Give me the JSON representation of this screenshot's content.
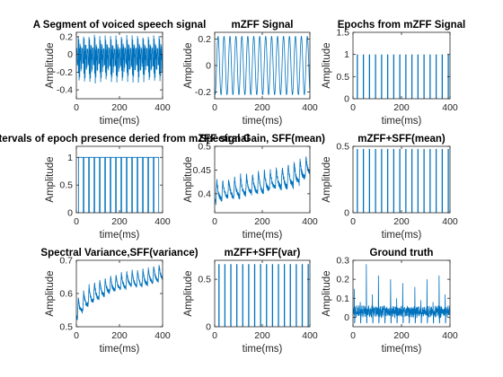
{
  "figure": {
    "line_color": "#0072BD",
    "axes_color": "#262626",
    "background": "#ffffff"
  },
  "chart_data": [
    {
      "id": "voiced-speech",
      "type": "line",
      "title": "A Segment of voiced speech signal",
      "xlabel": "time(ms)",
      "ylabel": "Amplitude",
      "xlim": [
        0,
        400
      ],
      "ylim": [
        -0.5,
        0.25
      ],
      "xticks": [
        0,
        200,
        400
      ],
      "yticks": [
        -0.4,
        -0.2,
        0,
        0.2
      ],
      "ytick_labels": [
        "-0.4",
        "-0.2",
        "0",
        "0.2"
      ],
      "series": [
        {
          "kind": "speech",
          "period_ms": 25,
          "offset_ms": 8,
          "min": -0.47,
          "max": 0.24,
          "x": [
            0,
            25,
            50,
            75,
            100,
            125,
            150,
            175,
            200,
            225,
            250,
            275,
            300,
            325,
            350,
            375,
            400
          ],
          "y_peak": [
            0.22,
            0.23,
            0.22,
            0.24,
            0.23,
            0.22,
            0.23,
            0.22,
            0.22,
            0.23,
            0.22,
            0.23,
            0.22,
            0.22,
            0.23,
            0.22,
            0.22
          ],
          "y_trough": [
            -0.44,
            -0.45,
            -0.44,
            -0.46,
            -0.45,
            -0.44,
            -0.45,
            -0.46,
            -0.44,
            -0.45,
            -0.44,
            -0.45,
            -0.44,
            -0.45,
            -0.46,
            -0.44,
            -0.44
          ]
        }
      ]
    },
    {
      "id": "mzff-signal",
      "type": "line",
      "title": "mZFF Signal",
      "xlabel": "time(ms)",
      "ylabel": "Amplitude",
      "xlim": [
        0,
        400
      ],
      "ylim": [
        -0.25,
        0.25
      ],
      "xticks": [
        0,
        200,
        400
      ],
      "yticks": [
        -0.2,
        0,
        0.2
      ],
      "ytick_labels": [
        "-0.2",
        "0",
        "0.2"
      ],
      "series": [
        {
          "kind": "sine",
          "period_ms": 25,
          "phase_ms": 8,
          "amplitude": 0.22
        }
      ]
    },
    {
      "id": "epochs-mzff",
      "type": "stem",
      "title": "Epochs from mZFF Signal",
      "xlabel": "time(ms)",
      "ylabel": "Amplitude",
      "xlim": [
        0,
        400
      ],
      "ylim": [
        0,
        1.5
      ],
      "xticks": [
        0,
        200,
        400
      ],
      "yticks": [
        0,
        0.5,
        1,
        1.5
      ],
      "ytick_labels": [
        "0",
        "0.5",
        "1",
        "1.5"
      ],
      "series": [
        {
          "kind": "impulses",
          "height": 1,
          "x": [
            18,
            43,
            68,
            93,
            118,
            143,
            168,
            193,
            218,
            243,
            268,
            293,
            318,
            343,
            368,
            393
          ]
        }
      ]
    },
    {
      "id": "epoch-intervals",
      "type": "line",
      "title": "Intervals of epoch presence deried from mZFF signal",
      "xlabel": "time(ms)",
      "ylabel": "Amplitude",
      "xlim": [
        0,
        400
      ],
      "ylim": [
        0,
        1.2
      ],
      "xticks": [
        0,
        200,
        400
      ],
      "yticks": [
        0,
        0.5,
        1
      ],
      "ytick_labels": [
        "0",
        "0.5",
        "1"
      ],
      "series": [
        {
          "kind": "pulses",
          "high": 1,
          "low": 0,
          "width_ms": 22,
          "start": [
            10,
            35,
            60,
            85,
            110,
            135,
            160,
            185,
            210,
            235,
            260,
            285,
            310,
            335,
            360
          ]
        }
      ]
    },
    {
      "id": "spectral-gain",
      "type": "line",
      "title": "Spectral Gain, SFF(mean)",
      "xlabel": "time(ms)",
      "ylabel": "Amplitude",
      "xlim": [
        0,
        400
      ],
      "ylim": [
        0.36,
        0.5
      ],
      "xticks": [
        0,
        200,
        400
      ],
      "yticks": [
        0.4,
        0.45,
        0.5
      ],
      "ytick_labels": [
        "0.4",
        "0.45",
        "0.5"
      ],
      "series": [
        {
          "kind": "sawtooth",
          "period_ms": 25,
          "offset_ms": 5,
          "x": [
            0,
            50,
            100,
            150,
            200,
            250,
            300,
            350,
            400
          ],
          "y_low": [
            0.38,
            0.39,
            0.39,
            0.4,
            0.4,
            0.41,
            0.41,
            0.42,
            0.44
          ],
          "y_high": [
            0.43,
            0.43,
            0.44,
            0.44,
            0.45,
            0.45,
            0.46,
            0.47,
            0.48
          ]
        }
      ]
    },
    {
      "id": "mzff-sff-mean",
      "type": "stem",
      "title": "mZFF+SFF(mean)",
      "xlabel": "time(ms)",
      "ylabel": "Amplitude",
      "xlim": [
        0,
        400
      ],
      "ylim": [
        0,
        0.5
      ],
      "xticks": [
        0,
        200,
        400
      ],
      "yticks": [
        0,
        0.5
      ],
      "ytick_labels": [
        "0",
        "0.5"
      ],
      "series": [
        {
          "kind": "impulses",
          "height": 0.48,
          "x": [
            18,
            43,
            68,
            93,
            118,
            143,
            168,
            193,
            218,
            243,
            268,
            293,
            318,
            343,
            368,
            393
          ]
        }
      ]
    },
    {
      "id": "spectral-variance",
      "type": "line",
      "title": "Spectral Variance,SFF(variance)",
      "xlabel": "time(ms)",
      "ylabel": "Amplitude",
      "xlim": [
        0,
        400
      ],
      "ylim": [
        0.5,
        0.7
      ],
      "xticks": [
        0,
        200,
        400
      ],
      "yticks": [
        0.5,
        0.6,
        0.7
      ],
      "ytick_labels": [
        "0.5",
        "0.6",
        "0.7"
      ],
      "series": [
        {
          "kind": "sawtooth",
          "period_ms": 25,
          "offset_ms": 5,
          "x": [
            0,
            50,
            100,
            150,
            200,
            250,
            300,
            350,
            400
          ],
          "y_low": [
            0.52,
            0.56,
            0.58,
            0.6,
            0.61,
            0.62,
            0.62,
            0.63,
            0.64
          ],
          "y_high": [
            0.58,
            0.62,
            0.64,
            0.65,
            0.66,
            0.67,
            0.67,
            0.68,
            0.69
          ]
        }
      ]
    },
    {
      "id": "mzff-sff-var",
      "type": "stem",
      "title": "mZFF+SFF(var)",
      "xlabel": "time(ms)",
      "ylabel": "Amplitude",
      "xlim": [
        0,
        400
      ],
      "ylim": [
        0,
        0.7
      ],
      "xticks": [
        0,
        200,
        400
      ],
      "yticks": [
        0,
        0.5
      ],
      "ytick_labels": [
        "0",
        "0.5"
      ],
      "series": [
        {
          "kind": "impulses",
          "height": 0.66,
          "x": [
            18,
            43,
            68,
            93,
            118,
            143,
            168,
            193,
            218,
            243,
            268,
            293,
            318,
            343,
            368,
            393
          ]
        }
      ]
    },
    {
      "id": "ground-truth",
      "type": "line",
      "title": "Ground truth",
      "xlabel": "time(ms)",
      "ylabel": "Amplitude",
      "xlim": [
        0,
        400
      ],
      "ylim": [
        -0.05,
        0.3
      ],
      "xticks": [
        0,
        200,
        400
      ],
      "yticks": [
        0,
        0.1,
        0.2,
        0.3
      ],
      "ytick_labels": [
        "0",
        "0.1",
        "0.2",
        "0.3"
      ],
      "series": [
        {
          "kind": "spiky",
          "period_ms": 25,
          "offset_ms": 5,
          "baseline": 0.03,
          "noise": 0.025,
          "x": [
            5,
            30,
            55,
            80,
            105,
            130,
            155,
            180,
            205,
            230,
            255,
            280,
            305,
            330,
            355,
            380
          ],
          "y_peak": [
            0.15,
            0.08,
            0.28,
            0.12,
            0.22,
            0.06,
            0.2,
            0.1,
            0.18,
            0.05,
            0.16,
            0.09,
            0.2,
            0.08,
            0.22,
            0.12
          ]
        }
      ]
    }
  ]
}
